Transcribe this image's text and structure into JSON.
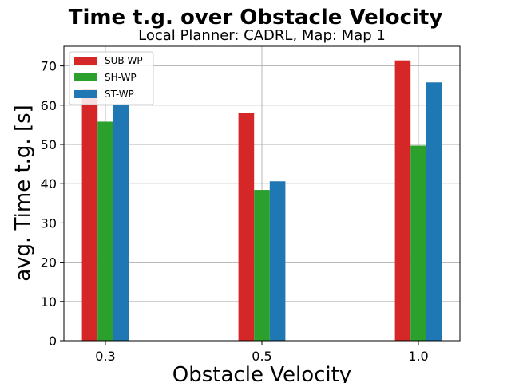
{
  "chart_data": {
    "type": "bar",
    "title": "Time t.g. over Obstacle Velocity",
    "subtitle": "Local Planner: CADRL, Map: Map 1",
    "xlabel": "Obstacle Velocity",
    "ylabel": "avg. Time t.g. [s]",
    "categories": [
      "0.3",
      "0.5",
      "1.0"
    ],
    "series": [
      {
        "name": "SUB-WP",
        "color": "#d62728",
        "values": [
          64.0,
          58.1,
          71.4
        ]
      },
      {
        "name": "SH-WP",
        "color": "#2ca02c",
        "values": [
          55.8,
          38.4,
          49.7
        ]
      },
      {
        "name": "ST-WP",
        "color": "#1f77b4",
        "values": [
          60.0,
          40.6,
          65.8
        ]
      }
    ],
    "ylim": [
      0,
      75
    ],
    "yticks": [
      "0",
      "10",
      "20",
      "30",
      "40",
      "50",
      "60",
      "70"
    ],
    "grid": true,
    "legend_position": "upper-left"
  }
}
